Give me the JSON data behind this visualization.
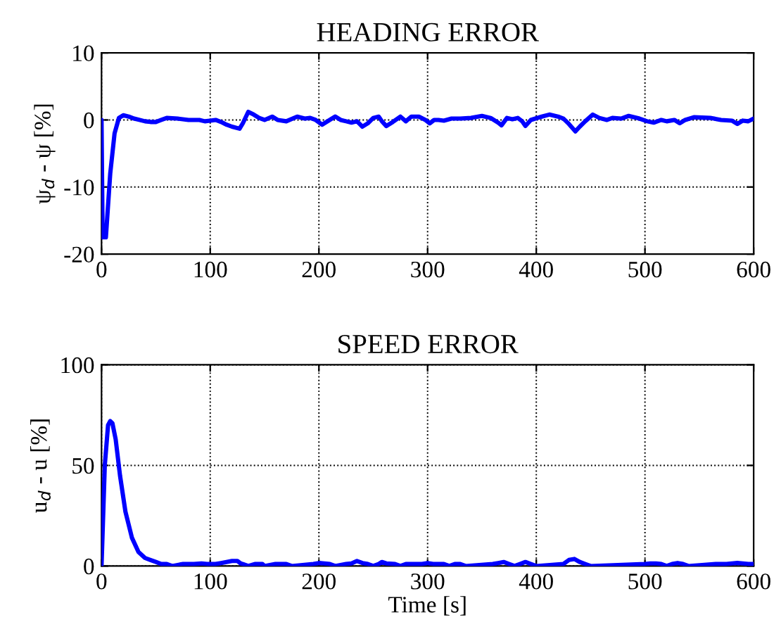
{
  "chart_data": [
    {
      "type": "line",
      "title": "HEADING ERROR",
      "ylabel": "ψ$_{d}$ - ψ [%]",
      "xlim": [
        0,
        600
      ],
      "ylim": [
        -20,
        10
      ],
      "xticks": [
        0,
        100,
        200,
        300,
        400,
        500,
        600
      ],
      "yticks": [
        -20,
        -10,
        0,
        10
      ],
      "grid": true,
      "series": [
        {
          "color": "#0000ff",
          "x": [
            0,
            1,
            4,
            8,
            12,
            16,
            20,
            25,
            30,
            40,
            45,
            50,
            55,
            60,
            70,
            80,
            90,
            95,
            100,
            105,
            110,
            115,
            120,
            127,
            130,
            135,
            140,
            145,
            150,
            157,
            162,
            170,
            180,
            187,
            192,
            197,
            203,
            210,
            215,
            220,
            225,
            230,
            235,
            240,
            245,
            250,
            255,
            258,
            262,
            268,
            275,
            280,
            285,
            292,
            298,
            302,
            306,
            310,
            315,
            322,
            330,
            340,
            350,
            358,
            365,
            368,
            373,
            378,
            383,
            387,
            390,
            395,
            405,
            412,
            420,
            425,
            430,
            436,
            440,
            445,
            452,
            458,
            465,
            470,
            478,
            485,
            495,
            502,
            508,
            515,
            520,
            527,
            532,
            537,
            545,
            560,
            570,
            580,
            585,
            590,
            595,
            600
          ],
          "values": [
            0,
            -17.5,
            -17.5,
            -8,
            -2,
            0.3,
            0.7,
            0.5,
            0.2,
            -0.2,
            -0.3,
            -0.3,
            0,
            0.3,
            0.2,
            0,
            0,
            -0.2,
            -0.1,
            0,
            -0.3,
            -0.7,
            -1,
            -1.3,
            -0.5,
            1.2,
            0.8,
            0.3,
            0,
            0.5,
            0,
            -0.2,
            0.5,
            0.2,
            0.3,
            0,
            -0.7,
            0,
            0.5,
            0,
            -0.2,
            -0.4,
            -0.2,
            -1,
            -0.5,
            0.3,
            0.5,
            -0.2,
            -0.9,
            -0.3,
            0.5,
            -0.2,
            0.5,
            0.5,
            0,
            -0.5,
            0,
            0,
            -0.1,
            0.2,
            0.2,
            0.3,
            0.6,
            0.3,
            -0.4,
            -0.8,
            0.3,
            0.1,
            0.3,
            -0.2,
            -0.9,
            0,
            0.5,
            0.8,
            0.5,
            0.2,
            -0.6,
            -1.7,
            -1,
            -0.2,
            0.8,
            0.3,
            0,
            0.3,
            0.2,
            0.6,
            0.2,
            -0.2,
            -0.4,
            0,
            -0.2,
            0,
            -0.5,
            0,
            0.4,
            0.3,
            0,
            -0.1,
            -0.6,
            -0.1,
            -0.2,
            0.2
          ]
        }
      ]
    },
    {
      "type": "line",
      "title": "SPEED ERROR",
      "xlabel": "Time [s]",
      "ylabel": "u$_{d}$ - u [%]",
      "xlim": [
        0,
        600
      ],
      "ylim": [
        0,
        100
      ],
      "xticks": [
        0,
        100,
        200,
        300,
        400,
        500,
        600
      ],
      "yticks": [
        0,
        50,
        100
      ],
      "grid": true,
      "series": [
        {
          "color": "#0000ff",
          "x": [
            0,
            3,
            6,
            8,
            10,
            13,
            17,
            22,
            28,
            34,
            40,
            45,
            50,
            55,
            60,
            65,
            75,
            85,
            92,
            97,
            105,
            110,
            120,
            125,
            128,
            130,
            135,
            141,
            148,
            150,
            160,
            170,
            175,
            195,
            200,
            205,
            210,
            215,
            225,
            230,
            235,
            240,
            245,
            250,
            255,
            258,
            262,
            270,
            275,
            280,
            295,
            300,
            305,
            315,
            320,
            325,
            330,
            335,
            360,
            365,
            370,
            375,
            380,
            385,
            390,
            395,
            400,
            425,
            430,
            435,
            440,
            445,
            450,
            500,
            505,
            510,
            515,
            520,
            525,
            530,
            535,
            540,
            565,
            575,
            580,
            585,
            590,
            595,
            600
          ],
          "values": [
            0,
            50,
            70,
            72,
            71,
            63,
            45,
            27,
            14,
            7,
            4,
            3,
            2,
            1,
            1,
            0,
            1,
            1,
            1.3,
            1,
            1,
            1.5,
            2.5,
            2.5,
            1.3,
            1,
            0,
            1,
            1,
            0,
            1,
            1,
            0,
            1,
            1.5,
            1.3,
            1,
            0,
            1,
            1.3,
            2.5,
            1.5,
            1,
            0,
            1,
            2,
            1.3,
            1,
            0,
            1,
            1,
            1.5,
            1,
            1,
            0,
            1,
            1,
            0,
            1,
            1.5,
            2,
            1,
            0,
            1,
            2,
            1,
            0,
            1,
            3,
            3.5,
            2,
            1,
            0,
            1,
            1.3,
            1.3,
            1,
            0,
            1,
            1.5,
            1,
            0,
            1,
            1,
            1.3,
            1.5,
            1.3,
            1,
            1
          ]
        }
      ]
    }
  ]
}
